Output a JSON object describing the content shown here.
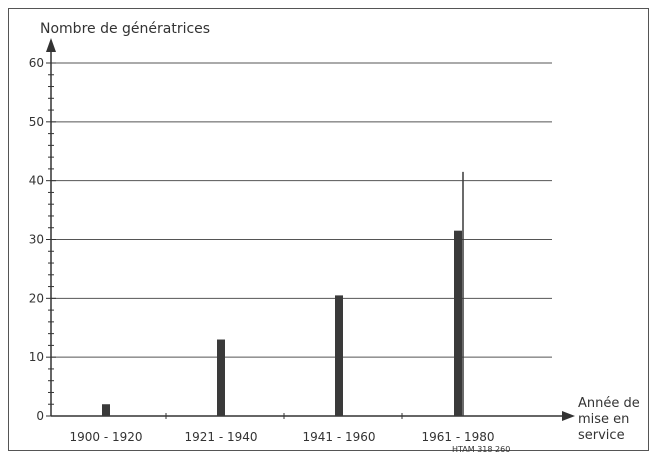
{
  "chart_data": {
    "type": "bar",
    "ylabel": "Nombre de génératrices",
    "xlabel": [
      "Année de",
      "mise en",
      "service"
    ],
    "categories": [
      "1900 - 1920",
      "1921 - 1940",
      "1941 - 1960",
      "1961 - 1980"
    ],
    "values": [
      2,
      13,
      20.5,
      31.5
    ],
    "max_line_value": 41.5,
    "ylim": [
      0,
      60
    ],
    "yticks": [
      0,
      10,
      20,
      30,
      40,
      50,
      60
    ],
    "grid": true,
    "reference_code": "HTAM 318 260",
    "colors": {
      "bar": "#3a3a3a",
      "axis": "#333333",
      "grid": "#555555"
    }
  }
}
